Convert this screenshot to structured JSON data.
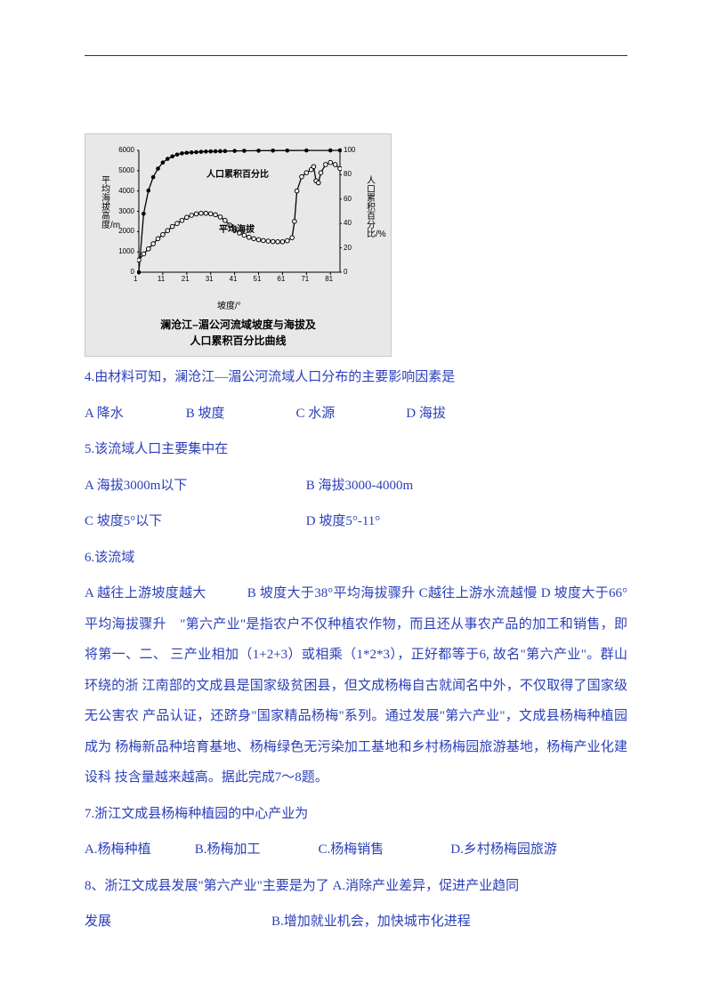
{
  "chart": {
    "type": "line",
    "title_line1": "澜沧江–湄公河流域坡度与海拔及",
    "title_line2": "人口累积百分比曲线",
    "xaxis_label": "坡度/°",
    "yaxis_left_label": "平均海拔高度/m",
    "yaxis_right_label": "人口累积百分比/%",
    "xticks": [
      1,
      11,
      21,
      31,
      41,
      51,
      61,
      71,
      81
    ],
    "yleft_ticks": [
      0,
      1000,
      2000,
      3000,
      4000,
      5000,
      6000
    ],
    "yright_ticks": [
      0,
      20,
      40,
      60,
      80,
      100
    ],
    "xlim": [
      1,
      85
    ],
    "yleft_lim": [
      0,
      6000
    ],
    "yright_lim": [
      0,
      100
    ],
    "series_top_label": "人口累积百分比",
    "series_bottom_label": "平均海拔",
    "colors": {
      "background": "#e8e8e8",
      "line": "#000000",
      "marker_fill": "#000000",
      "marker_outline": "#000000",
      "axis": "#000000"
    },
    "series_population": [
      [
        1,
        0
      ],
      [
        3,
        48
      ],
      [
        5,
        67
      ],
      [
        7,
        78
      ],
      [
        9,
        85
      ],
      [
        11,
        90
      ],
      [
        13,
        93
      ],
      [
        15,
        95
      ],
      [
        17,
        96.5
      ],
      [
        19,
        97.5
      ],
      [
        21,
        98
      ],
      [
        23,
        98.3
      ],
      [
        25,
        98.5
      ],
      [
        27,
        98.8
      ],
      [
        29,
        99
      ],
      [
        31,
        99.1
      ],
      [
        33,
        99.2
      ],
      [
        35,
        99.3
      ],
      [
        37,
        99.4
      ],
      [
        41,
        99.5
      ],
      [
        45,
        99.6
      ],
      [
        51,
        99.7
      ],
      [
        57,
        99.8
      ],
      [
        63,
        99.85
      ],
      [
        71,
        99.9
      ],
      [
        81,
        99.95
      ],
      [
        85,
        100
      ]
    ],
    "series_elevation": [
      [
        1,
        600
      ],
      [
        3,
        900
      ],
      [
        5,
        1150
      ],
      [
        7,
        1400
      ],
      [
        9,
        1650
      ],
      [
        11,
        1850
      ],
      [
        13,
        2050
      ],
      [
        15,
        2250
      ],
      [
        17,
        2400
      ],
      [
        19,
        2550
      ],
      [
        21,
        2700
      ],
      [
        23,
        2800
      ],
      [
        25,
        2870
      ],
      [
        27,
        2900
      ],
      [
        29,
        2900
      ],
      [
        31,
        2880
      ],
      [
        33,
        2830
      ],
      [
        35,
        2720
      ],
      [
        37,
        2550
      ],
      [
        39,
        2320
      ],
      [
        41,
        2100
      ],
      [
        43,
        1930
      ],
      [
        45,
        1820
      ],
      [
        47,
        1720
      ],
      [
        49,
        1650
      ],
      [
        51,
        1600
      ],
      [
        53,
        1560
      ],
      [
        55,
        1530
      ],
      [
        57,
        1510
      ],
      [
        59,
        1500
      ],
      [
        61,
        1500
      ],
      [
        63,
        1550
      ],
      [
        65,
        1700
      ],
      [
        66,
        2500
      ],
      [
        67,
        4000
      ],
      [
        69,
        4700
      ],
      [
        71,
        4900
      ],
      [
        73,
        5050
      ],
      [
        74,
        5200
      ],
      [
        75,
        4500
      ],
      [
        76,
        4400
      ],
      [
        77,
        4900
      ],
      [
        79,
        5300
      ],
      [
        81,
        5400
      ],
      [
        83,
        5300
      ],
      [
        85,
        5100
      ]
    ],
    "marker_size": 2.3,
    "line_width": 1.3
  },
  "q4": {
    "stem": "4.由材料可知，澜沧江—湄公河流域人口分布的主要影响因素是",
    "a": "A 降水",
    "b": "B 坡度",
    "c": "C 水源",
    "d": "D 海拔"
  },
  "q5": {
    "stem": "5.该流域人口主要集中在",
    "a": "A 海拔3000m以下",
    "b": "B 海拔3000-4000m",
    "c": "C  坡度5°以下",
    "d": "D 坡度5°-11°"
  },
  "q6": {
    "stem": "6.该流域",
    "long": "A 越往上游坡度越大　　　B 坡度大于38°平均海拔骤升 C越往上游水流越慢 D 坡度大于66°平均海拔骤升　\"第六产业\"是指农户不仅种植农作物，而且还从事农产品的加工和销售，即将第一、二、 三产业相加（1+2+3）或相乘（1*2*3），正好都等于6, 故名\"第六产业\"。群山环绕的浙 江南部的文成县是国家级贫困县，但文成杨梅自古就闻名中外，不仅取得了国家级无公害农 产品认证，还跻身\"国家精品杨梅\"系列。通过发展\"第六产业\"，文成县杨梅种植园成为 杨梅新品种培育基地、杨梅绿色无污染加工基地和乡村杨梅园旅游基地，杨梅产业化建设科 技含量越来越高。据此完成7～8题。"
  },
  "q7": {
    "stem": "7.浙江文成县杨梅种植园的中心产业为",
    "a": "A.杨梅种植",
    "b": "B.杨梅加工",
    "c": "C.杨梅销售",
    "d": "D.乡村杨梅园旅游"
  },
  "q8": {
    "line1": "8、浙江文成县发展\"第六产业\"主要是为了 A.消除产业差异，促进产业趋同",
    "line2": "发展　　　　　　　　　　　　B.增加就业机会，加快城市化进程"
  },
  "text_color": "#2b3fb8"
}
